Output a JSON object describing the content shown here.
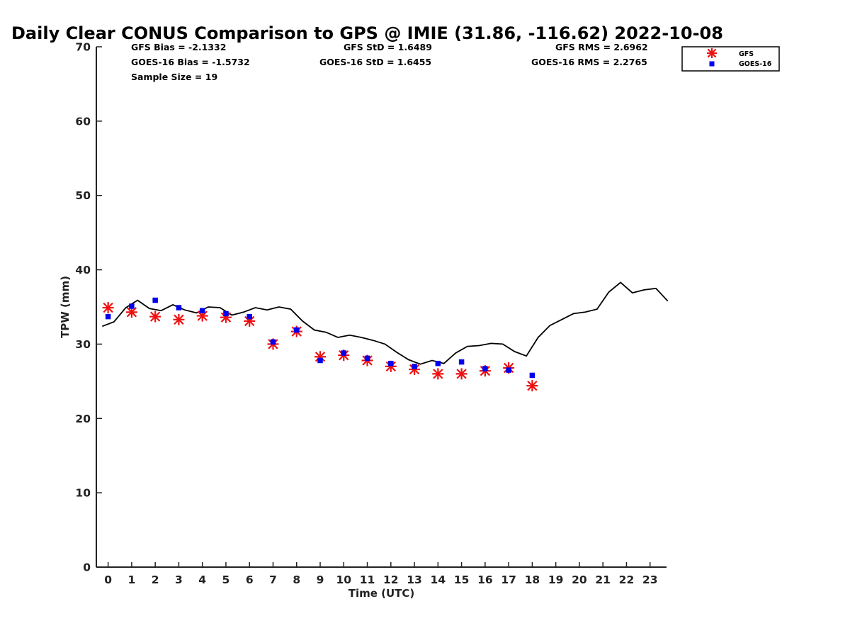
{
  "chart_data": {
    "type": "scatter",
    "title": "Daily Clear CONUS Comparison to GPS @ IMIE (31.86, -116.62) 2022-10-08",
    "xlabel": "Time (UTC)",
    "ylabel": "TPW (mm)",
    "xlim": [
      -0.5,
      23.7
    ],
    "ylim": [
      0,
      70
    ],
    "x_ticks": [
      "0",
      "1",
      "2",
      "3",
      "4",
      "5",
      "6",
      "7",
      "8",
      "9",
      "10",
      "11",
      "12",
      "13",
      "14",
      "15",
      "16",
      "17",
      "18",
      "19",
      "20",
      "21",
      "22",
      "23"
    ],
    "y_ticks": [
      "0",
      "10",
      "20",
      "30",
      "40",
      "50",
      "60",
      "70"
    ],
    "grid": false,
    "legend_position": "top-right",
    "stats": {
      "gfs_bias": "GFS Bias = -2.1332",
      "goes_bias": "GOES-16 Bias = -1.5732",
      "sample_size": "Sample Size = 19",
      "gfs_std": "GFS StD = 1.6489",
      "goes_std": "GOES-16 StD = 1.6455",
      "gfs_rms": "GFS RMS = 2.6962",
      "goes_rms": "GOES-16 RMS = 2.2765"
    },
    "series": [
      {
        "name": "GFS",
        "marker": "asterisk",
        "color": "#ee1111",
        "x": [
          0,
          1,
          2,
          3,
          4,
          5,
          6,
          7,
          8,
          9,
          10,
          11,
          12,
          13,
          14,
          15,
          16,
          17,
          18
        ],
        "y": [
          34.9,
          34.3,
          33.7,
          33.3,
          33.8,
          33.6,
          33.1,
          30.0,
          31.7,
          28.3,
          28.5,
          27.8,
          27.0,
          26.6,
          26.0,
          26.0,
          26.4,
          26.8,
          24.4
        ]
      },
      {
        "name": "GOES-16",
        "marker": "square",
        "color": "#0000ee",
        "x": [
          0,
          1,
          2,
          3,
          4,
          5,
          6,
          7,
          8,
          9,
          10,
          11,
          12,
          13,
          14,
          15,
          16,
          17,
          18
        ],
        "y": [
          33.7,
          35.1,
          35.9,
          34.9,
          34.5,
          34.1,
          33.7,
          30.3,
          31.9,
          27.8,
          28.8,
          28.1,
          27.4,
          27.0,
          27.4,
          27.6,
          26.7,
          26.5,
          25.8
        ]
      },
      {
        "marker": "line",
        "color": "#000000",
        "x": [
          -0.25,
          0.25,
          0.75,
          1.25,
          1.75,
          2.25,
          2.75,
          3.25,
          3.75,
          4.25,
          4.75,
          5.25,
          5.75,
          6.25,
          6.75,
          7.25,
          7.75,
          8.25,
          8.75,
          9.25,
          9.75,
          10.25,
          10.75,
          11.25,
          11.75,
          12.25,
          12.75,
          13.25,
          13.75,
          14.25,
          14.75,
          15.25,
          15.75,
          16.25,
          16.75,
          17.25,
          17.75,
          18.25,
          18.75,
          19.25,
          19.75,
          20.25,
          20.75,
          21.25,
          21.75,
          22.25,
          22.75,
          23.25,
          23.75
        ],
        "y": [
          32.4,
          33.0,
          34.9,
          35.9,
          34.8,
          34.5,
          35.3,
          34.6,
          34.2,
          35.0,
          34.9,
          33.9,
          34.3,
          34.9,
          34.6,
          35.0,
          34.7,
          33.1,
          31.9,
          31.6,
          30.9,
          31.2,
          30.9,
          30.5,
          30.0,
          28.9,
          27.9,
          27.3,
          27.8,
          27.4,
          28.8,
          29.7,
          29.8,
          30.1,
          30.0,
          29.0,
          28.4,
          30.9,
          32.5,
          33.3,
          34.1,
          34.3,
          34.7,
          37.0,
          38.3,
          36.9,
          37.3,
          37.5,
          35.8
        ]
      }
    ]
  }
}
